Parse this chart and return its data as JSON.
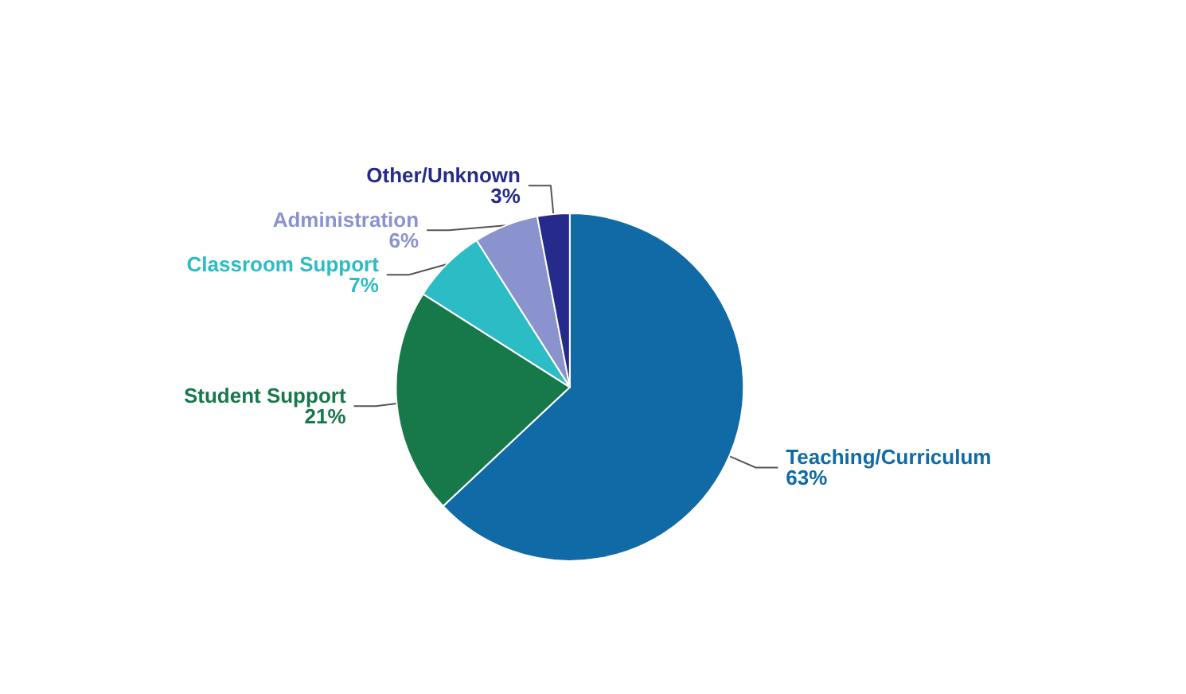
{
  "chart_data": {
    "type": "pie",
    "categories": [
      "Teaching/Curriculum",
      "Student Support",
      "Classroom Support",
      "Administration",
      "Other/Unknown"
    ],
    "values": [
      63,
      21,
      7,
      6,
      3
    ],
    "value_labels": [
      "63%",
      "21%",
      "7%",
      "6%",
      "3%"
    ],
    "colors": [
      "#0f6aa6",
      "#17784a",
      "#2cbcc6",
      "#8b93cf",
      "#262a8a"
    ],
    "legend": false
  }
}
